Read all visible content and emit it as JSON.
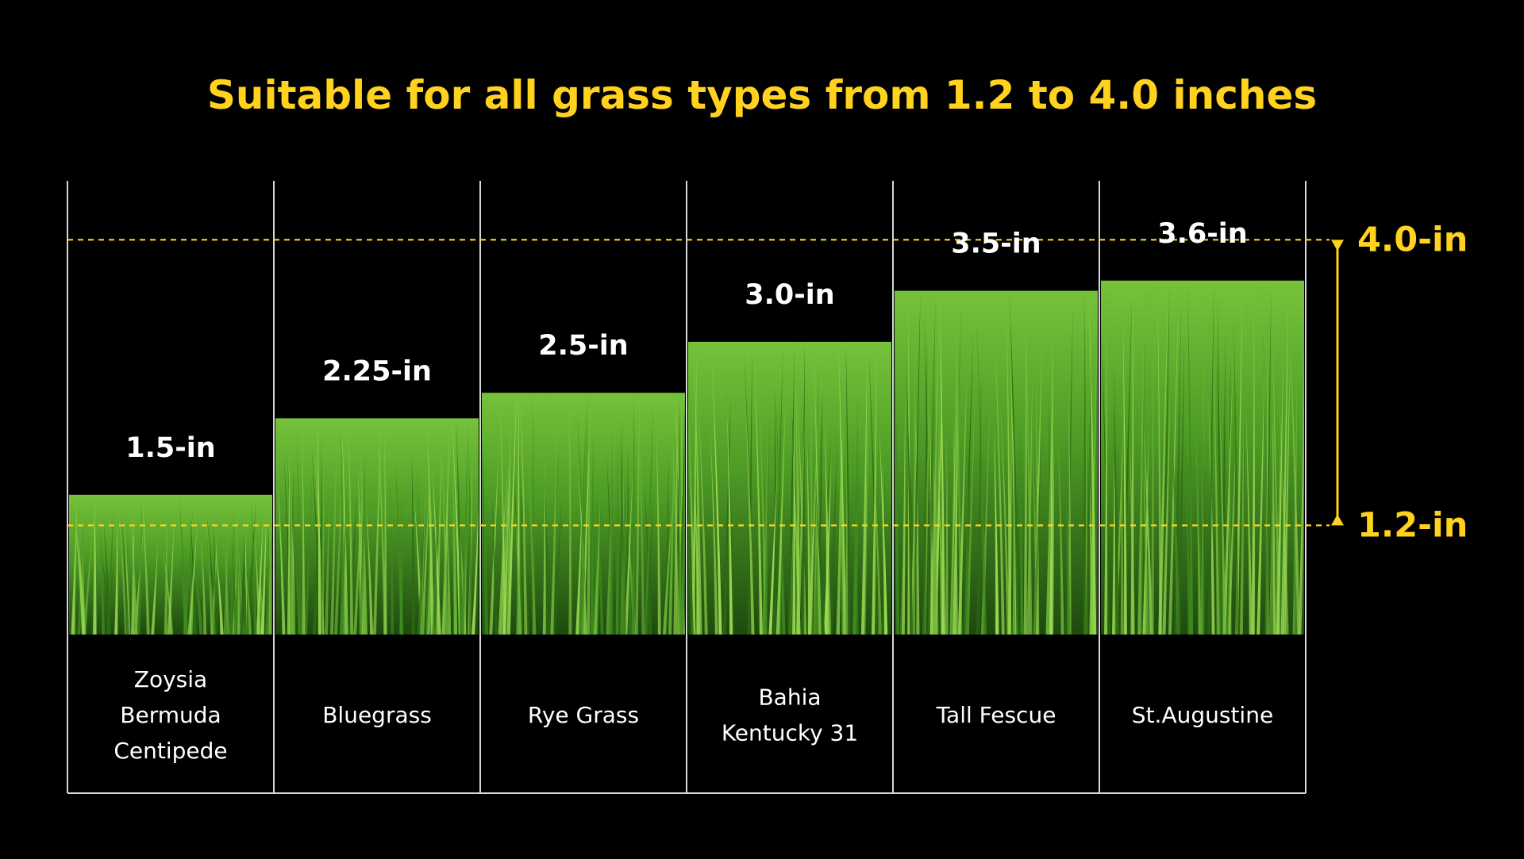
{
  "chart_data": {
    "type": "bar",
    "title": "Suitable for all grass types from 1.2 to 4.0 inches",
    "categories": [
      [
        "Zoysia",
        "Bermuda",
        "Centipede"
      ],
      [
        "Bluegrass"
      ],
      [
        "Rye Grass"
      ],
      [
        "Bahia",
        "Kentucky 31"
      ],
      [
        "Tall Fescue"
      ],
      [
        "St.Augustine"
      ]
    ],
    "values": [
      1.5,
      2.25,
      2.5,
      3.0,
      3.5,
      3.6
    ],
    "value_labels": [
      "1.5-in",
      "2.25-in",
      "2.5-in",
      "3.0-in",
      "3.5-in",
      "3.6-in"
    ],
    "reference_lines": [
      {
        "value": 4.0,
        "label": "4.0-in"
      },
      {
        "value": 1.2,
        "label": "1.2-in"
      }
    ],
    "unit": "in",
    "legend": "none",
    "grid": false
  },
  "colors": {
    "background": "#000000",
    "accent": "#FFD21F",
    "text": "#FFFFFF",
    "dividers": "#D8D8D8",
    "grass_dark": "#1E4A10",
    "grass_mid": "#3E8A1E",
    "grass_light": "#7CC83A"
  }
}
